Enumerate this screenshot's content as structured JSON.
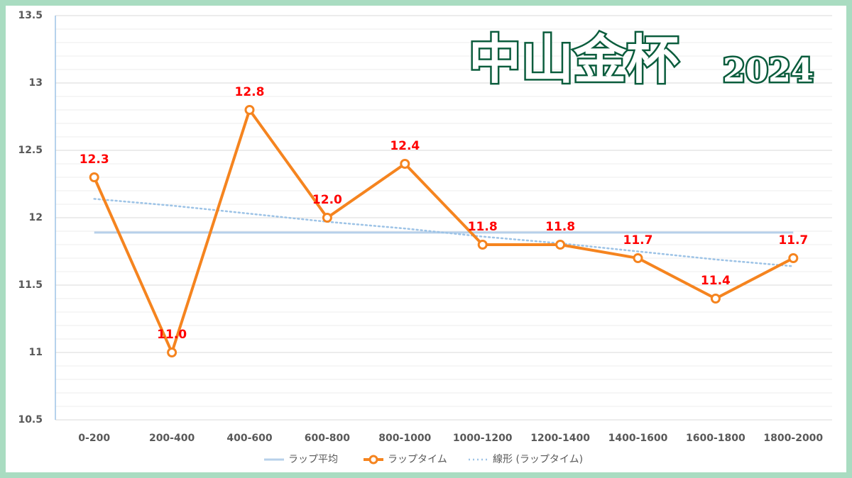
{
  "chart_data": {
    "type": "line",
    "title": "中山金杯",
    "subtitle": "2024",
    "categories": [
      "0-200",
      "200-400",
      "400-600",
      "600-800",
      "800-1000",
      "1000-1200",
      "1200-1400",
      "1400-1600",
      "1600-1800",
      "1800-2000"
    ],
    "series": [
      {
        "name": "ラップ平均",
        "color": "#b7d0ea",
        "values": [
          11.89,
          11.89,
          11.89,
          11.89,
          11.89,
          11.89,
          11.89,
          11.89,
          11.89,
          11.89
        ]
      },
      {
        "name": "ラップタイム",
        "color": "#f5841f",
        "values": [
          12.3,
          11.0,
          12.8,
          12.0,
          12.4,
          11.8,
          11.8,
          11.7,
          11.4,
          11.7
        ],
        "value_labels": [
          "12.3",
          "11.0",
          "12.8",
          "12.0",
          "12.4",
          "11.8",
          "11.8",
          "11.7",
          "11.4",
          "11.7"
        ]
      },
      {
        "name": "線形 (ラップタイム)",
        "color": "#9dc3e6",
        "dotted": true,
        "values": [
          12.14,
          12.09,
          12.03,
          11.97,
          11.92,
          11.86,
          11.81,
          11.75,
          11.69,
          11.64
        ]
      }
    ],
    "ylim": [
      10.5,
      13.5
    ],
    "yticks": [
      10.5,
      11,
      11.5,
      12,
      12.5,
      13,
      13.5
    ],
    "y_minor_ticks": [
      10.6,
      10.7,
      10.8,
      10.9,
      11.1,
      11.2,
      11.3,
      11.4,
      11.6,
      11.7,
      11.8,
      11.9,
      12.1,
      12.2,
      12.3,
      12.4,
      12.6,
      12.7,
      12.8,
      12.9,
      13.1,
      13.2,
      13.3,
      13.4
    ],
    "grid": true,
    "legend": "bottom"
  }
}
